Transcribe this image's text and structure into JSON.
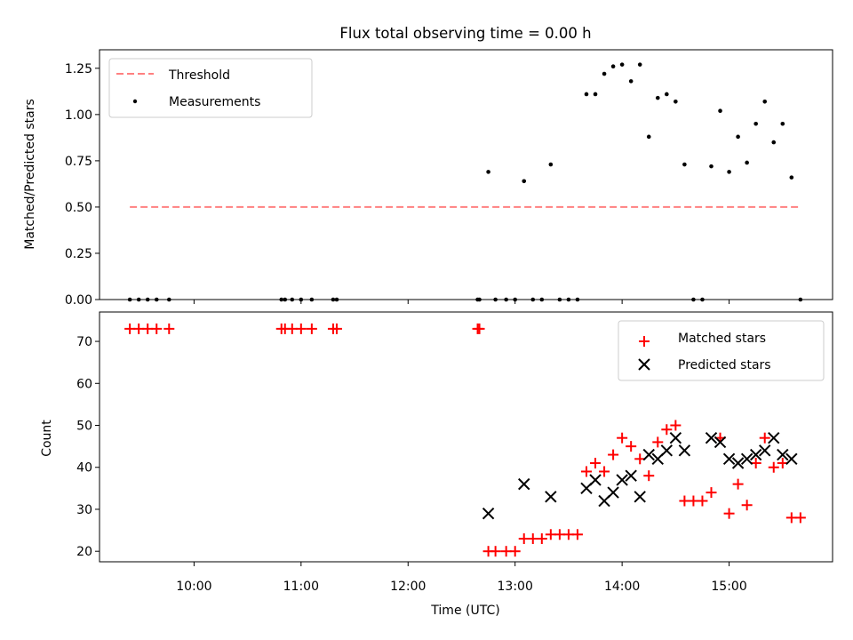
{
  "chart_data": [
    {
      "type": "scatter",
      "title": "Flux total observing time = 0.00 h",
      "xlabel": "",
      "ylabel": "Matched/Predicted stars",
      "xlim": [
        "09:07",
        "15:58"
      ],
      "ylim": [
        0,
        1.35
      ],
      "yticks": [
        0.0,
        0.25,
        0.5,
        0.75,
        1.0,
        1.25
      ],
      "ytick_labels": [
        "0.00",
        "0.25",
        "0.50",
        "0.75",
        "1.00",
        "1.25"
      ],
      "legend_position": "top-left",
      "threshold": {
        "name": "Threshold",
        "value": 0.5,
        "x_start": "09:24",
        "x_end": "15:40",
        "color": "#ff8080",
        "style": "dashed"
      },
      "series": [
        {
          "name": "Measurements",
          "marker": "dot",
          "color": "#000000",
          "points": [
            [
              "09:24",
              0.0
            ],
            [
              "09:29",
              0.0
            ],
            [
              "09:34",
              0.0
            ],
            [
              "09:39",
              0.0
            ],
            [
              "09:46",
              0.0
            ],
            [
              "10:49",
              0.0
            ],
            [
              "10:51",
              0.0
            ],
            [
              "10:55",
              0.0
            ],
            [
              "11:00",
              0.0
            ],
            [
              "11:06",
              0.0
            ],
            [
              "11:18",
              0.0
            ],
            [
              "11:20",
              0.0
            ],
            [
              "12:39",
              0.0
            ],
            [
              "12:40",
              0.0
            ],
            [
              "12:45",
              0.69
            ],
            [
              "12:49",
              0.0
            ],
            [
              "12:55",
              0.0
            ],
            [
              "13:00",
              0.0
            ],
            [
              "13:05",
              0.64
            ],
            [
              "13:10",
              0.0
            ],
            [
              "13:15",
              0.0
            ],
            [
              "13:20",
              0.73
            ],
            [
              "13:25",
              0.0
            ],
            [
              "13:30",
              0.0
            ],
            [
              "13:35",
              0.0
            ],
            [
              "13:40",
              1.11
            ],
            [
              "13:45",
              1.11
            ],
            [
              "13:50",
              1.22
            ],
            [
              "13:55",
              1.26
            ],
            [
              "14:00",
              1.27
            ],
            [
              "14:05",
              1.18
            ],
            [
              "14:10",
              1.27
            ],
            [
              "14:15",
              0.88
            ],
            [
              "14:20",
              1.09
            ],
            [
              "14:25",
              1.11
            ],
            [
              "14:30",
              1.07
            ],
            [
              "14:35",
              0.73
            ],
            [
              "14:40",
              0.0
            ],
            [
              "14:45",
              0.0
            ],
            [
              "14:50",
              0.72
            ],
            [
              "14:55",
              1.02
            ],
            [
              "15:00",
              0.69
            ],
            [
              "15:05",
              0.88
            ],
            [
              "15:10",
              0.74
            ],
            [
              "15:15",
              0.95
            ],
            [
              "15:20",
              1.07
            ],
            [
              "15:25",
              0.85
            ],
            [
              "15:30",
              0.95
            ],
            [
              "15:35",
              0.66
            ],
            [
              "15:40",
              0.0
            ]
          ]
        }
      ]
    },
    {
      "type": "scatter",
      "title": "",
      "xlabel": "Time (UTC)",
      "ylabel": "Count",
      "xlim": [
        "09:07",
        "15:58"
      ],
      "xticks": [
        "10:00",
        "11:00",
        "12:00",
        "13:00",
        "14:00",
        "15:00"
      ],
      "ylim": [
        17.5,
        77
      ],
      "yticks": [
        20,
        30,
        40,
        50,
        60,
        70
      ],
      "legend_position": "top-right",
      "series": [
        {
          "name": "Matched stars",
          "marker": "plus",
          "color": "#ff0000",
          "points": [
            [
              "09:24",
              73
            ],
            [
              "09:29",
              73
            ],
            [
              "09:34",
              73
            ],
            [
              "09:39",
              73
            ],
            [
              "09:46",
              73
            ],
            [
              "10:49",
              73
            ],
            [
              "10:51",
              73
            ],
            [
              "10:55",
              73
            ],
            [
              "11:00",
              73
            ],
            [
              "11:06",
              73
            ],
            [
              "11:18",
              73
            ],
            [
              "11:20",
              73
            ],
            [
              "12:39",
              73
            ],
            [
              "12:40",
              73
            ],
            [
              "12:45",
              20
            ],
            [
              "12:49",
              20
            ],
            [
              "12:55",
              20
            ],
            [
              "13:00",
              20
            ],
            [
              "13:05",
              23
            ],
            [
              "13:10",
              23
            ],
            [
              "13:15",
              23
            ],
            [
              "13:20",
              24
            ],
            [
              "13:25",
              24
            ],
            [
              "13:30",
              24
            ],
            [
              "13:35",
              24
            ],
            [
              "13:40",
              39
            ],
            [
              "13:45",
              41
            ],
            [
              "13:50",
              39
            ],
            [
              "13:55",
              43
            ],
            [
              "14:00",
              47
            ],
            [
              "14:05",
              45
            ],
            [
              "14:10",
              42
            ],
            [
              "14:15",
              38
            ],
            [
              "14:20",
              46
            ],
            [
              "14:25",
              49
            ],
            [
              "14:30",
              50
            ],
            [
              "14:35",
              32
            ],
            [
              "14:40",
              32
            ],
            [
              "14:45",
              32
            ],
            [
              "14:50",
              34
            ],
            [
              "14:55",
              47
            ],
            [
              "15:00",
              29
            ],
            [
              "15:05",
              36
            ],
            [
              "15:10",
              31
            ],
            [
              "15:15",
              41
            ],
            [
              "15:20",
              47
            ],
            [
              "15:25",
              40
            ],
            [
              "15:30",
              41
            ],
            [
              "15:35",
              28
            ],
            [
              "15:40",
              28
            ]
          ]
        },
        {
          "name": "Predicted stars",
          "marker": "x",
          "color": "#000000",
          "points": [
            [
              "12:45",
              29
            ],
            [
              "13:05",
              36
            ],
            [
              "13:20",
              33
            ],
            [
              "13:40",
              35
            ],
            [
              "13:45",
              37
            ],
            [
              "13:50",
              32
            ],
            [
              "13:55",
              34
            ],
            [
              "14:00",
              37
            ],
            [
              "14:05",
              38
            ],
            [
              "14:10",
              33
            ],
            [
              "14:15",
              43
            ],
            [
              "14:20",
              42
            ],
            [
              "14:25",
              44
            ],
            [
              "14:30",
              47
            ],
            [
              "14:35",
              44
            ],
            [
              "14:50",
              47
            ],
            [
              "14:55",
              46
            ],
            [
              "15:00",
              42
            ],
            [
              "15:05",
              41
            ],
            [
              "15:10",
              42
            ],
            [
              "15:15",
              43
            ],
            [
              "15:20",
              44
            ],
            [
              "15:25",
              47
            ],
            [
              "15:30",
              43
            ],
            [
              "15:35",
              42
            ]
          ]
        }
      ]
    }
  ]
}
